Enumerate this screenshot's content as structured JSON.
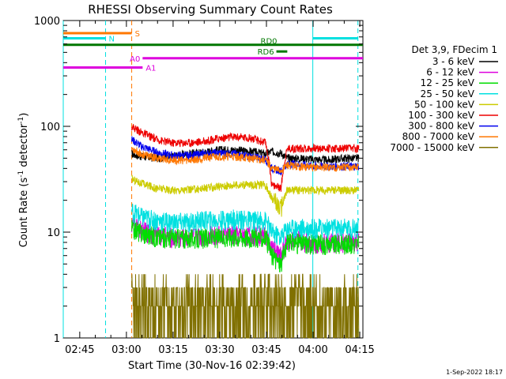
{
  "chart_data": {
    "type": "line",
    "title": "RHESSI Observing Summary Count Rates",
    "xlabel": "Start Time (30-Nov-16 02:39:42)",
    "ylabel_main": "Count Rate (s",
    "ylabel_sup1": "-1",
    "ylabel_mid": " detector",
    "ylabel_sup2": "-1",
    "ylabel_end": ")",
    "y_scale": "log",
    "ylim": [
      1,
      1000
    ],
    "xlim_minutes_after_0239_42": [
      0,
      96.3
    ],
    "x_ticks": [
      {
        "label": "02:45",
        "minute": 5.3
      },
      {
        "label": "03:00",
        "minute": 20.3
      },
      {
        "label": "03:15",
        "minute": 35.3
      },
      {
        "label": "03:30",
        "minute": 50.3
      },
      {
        "label": "03:45",
        "minute": 65.3
      },
      {
        "label": "04:00",
        "minute": 80.3
      },
      {
        "label": "04:15",
        "minute": 95.3
      }
    ],
    "y_ticks": [
      {
        "label": "1",
        "value": 1
      },
      {
        "label": "10",
        "value": 10
      },
      {
        "label": "100",
        "value": 100
      },
      {
        "label": "1000",
        "value": 1000
      }
    ],
    "legend_title": "Det 3,9, FDecim 1",
    "series": [
      {
        "name": "3 - 6 keV",
        "color": "#000000",
        "x": [
          22,
          25,
          30,
          35,
          40,
          45,
          50,
          55,
          60,
          65,
          67,
          70,
          72,
          75,
          80,
          85,
          90,
          95
        ],
        "y": [
          55,
          52,
          50,
          52,
          55,
          57,
          60,
          60,
          58,
          55,
          58,
          56,
          50,
          50,
          49,
          48,
          50,
          50
        ]
      },
      {
        "name": "6 - 12 keV",
        "color": "#dd00dd",
        "x": [
          22,
          25,
          30,
          35,
          40,
          45,
          50,
          55,
          60,
          65,
          67,
          70,
          72,
          75,
          80,
          85,
          90,
          95
        ],
        "y": [
          12,
          10.5,
          9.5,
          9,
          9,
          9.3,
          9.5,
          9.5,
          9.3,
          9.5,
          7,
          6,
          8.5,
          8.5,
          8,
          8,
          8,
          8
        ]
      },
      {
        "name": "12 - 25 keV",
        "color": "#00dd00",
        "x": [
          22,
          25,
          30,
          35,
          40,
          45,
          50,
          55,
          60,
          65,
          67,
          70,
          72,
          75,
          80,
          85,
          90,
          95
        ],
        "y": [
          11,
          10,
          9,
          9,
          8.8,
          8.8,
          9,
          9.2,
          9,
          9,
          6,
          5,
          8,
          8,
          7.8,
          7.8,
          7.8,
          7.8
        ]
      },
      {
        "name": "25 - 50 keV",
        "color": "#00e0e0",
        "x": [
          22,
          25,
          30,
          35,
          40,
          45,
          50,
          55,
          60,
          65,
          67,
          70,
          72,
          75,
          80,
          85,
          90,
          95
        ],
        "y": [
          16,
          14,
          13,
          12.5,
          12.5,
          13,
          13,
          13.5,
          13,
          13,
          10,
          9,
          11,
          11,
          11,
          11,
          11,
          11
        ]
      },
      {
        "name": "50 - 100 keV",
        "color": "#cccc00",
        "x": [
          22,
          25,
          30,
          35,
          40,
          45,
          50,
          55,
          60,
          65,
          67,
          70,
          72,
          75,
          80,
          85,
          90,
          95
        ],
        "y": [
          32,
          29,
          26,
          25,
          25,
          26,
          27,
          28,
          28,
          28,
          21,
          17,
          25,
          25,
          25,
          25,
          25,
          25
        ]
      },
      {
        "name": "100 - 300 keV",
        "color": "#ee0000",
        "x": [
          22,
          25,
          30,
          35,
          40,
          45,
          50,
          55,
          60,
          65,
          67,
          70,
          72,
          75,
          80,
          85,
          90,
          95
        ],
        "y": [
          100,
          88,
          75,
          70,
          70,
          72,
          77,
          80,
          78,
          70,
          28,
          26,
          62,
          62,
          62,
          62,
          62,
          62
        ]
      },
      {
        "name": "300 - 800 keV",
        "color": "#0000ee",
        "x": [
          22,
          25,
          30,
          35,
          40,
          45,
          50,
          55,
          60,
          65,
          67,
          70,
          72,
          75,
          80,
          85,
          90,
          95
        ],
        "y": [
          75,
          65,
          57,
          53,
          53,
          55,
          56,
          55,
          52,
          49,
          40,
          38,
          44,
          44,
          42,
          42,
          42,
          42
        ]
      },
      {
        "name": "800 - 7000 keV",
        "color": "#ff7700",
        "x": [
          22,
          25,
          30,
          35,
          40,
          45,
          50,
          55,
          60,
          65,
          67,
          70,
          72,
          75,
          80,
          85,
          90,
          95
        ],
        "y": [
          62,
          55,
          50,
          48,
          48,
          50,
          52,
          52,
          50,
          48,
          40,
          38,
          43,
          42,
          41,
          41,
          41,
          41
        ]
      },
      {
        "name": "7000 - 15000 keV",
        "color": "#807000",
        "x": [
          22,
          25,
          30,
          35,
          40,
          45,
          50,
          55,
          60,
          65,
          67,
          70,
          72,
          75,
          80,
          85,
          90,
          95
        ],
        "y": [
          3,
          2.4,
          2.1,
          2,
          2,
          2.1,
          2.2,
          2.3,
          2.3,
          2.3,
          2.3,
          2.2,
          2,
          1.8,
          1.8,
          1.8,
          1.8,
          1.8
        ]
      }
    ],
    "vertical_lines": [
      {
        "minute": 0,
        "color": "#00e0e0",
        "style": "solid"
      },
      {
        "minute": 13.6,
        "color": "#00e0e0",
        "style": "dashed"
      },
      {
        "minute": 22,
        "color": "#ff7700",
        "style": "dashed"
      },
      {
        "minute": 80.2,
        "color": "#00e0e0",
        "style": "solid"
      },
      {
        "minute": 94.7,
        "color": "#00e0e0",
        "style": "dashed"
      }
    ],
    "flag_bars": [
      {
        "label": "S",
        "color": "#ff7700",
        "x0": 0,
        "x1": 22,
        "y": 760,
        "label_at": "end"
      },
      {
        "label": "N",
        "color": "#00e0e0",
        "x0": 0,
        "x1": 13.6,
        "y": 680,
        "label_at": "end"
      },
      {
        "label": "",
        "color": "#00e0e0",
        "x0": 80.2,
        "x1": 94.7,
        "y": 680,
        "label_at": "none"
      },
      {
        "label": "RD0",
        "color": "#007700",
        "x0": 0,
        "x1": 96.3,
        "y": 590,
        "label_at": "mid"
      },
      {
        "label": "RD6",
        "color": "#007700",
        "x0": 68.5,
        "x1": 72,
        "y": 510,
        "label_at": "start"
      },
      {
        "label": "A0",
        "color": "#dd00dd",
        "x0": 25.5,
        "x1": 96.3,
        "y": 440,
        "label_at": "start"
      },
      {
        "label": "A1",
        "color": "#dd00dd",
        "x0": 0,
        "x1": 25.5,
        "y": 360,
        "label_at": "end"
      }
    ],
    "footer_date": "1-Sep-2022 18:17",
    "grid": false,
    "legend_position": "right"
  }
}
